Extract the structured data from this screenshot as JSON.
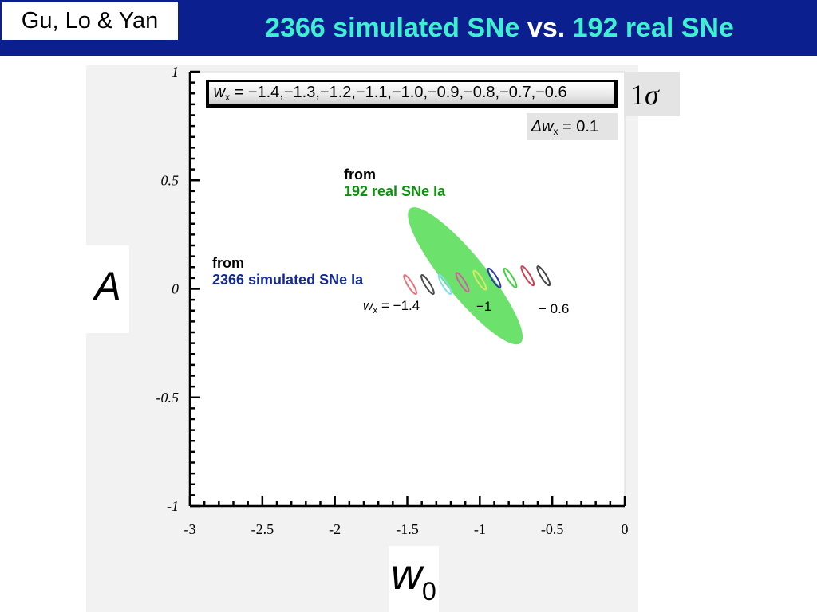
{
  "header": {
    "author": "Gu, Lo & Yan",
    "title_part1": "2366 simulated SNe",
    "title_part2": " vs. ",
    "title_part3": "192 real SNe"
  },
  "labels": {
    "y_axis": "A",
    "x_axis_var": "w",
    "x_axis_sub": "0",
    "sigma_num": "1",
    "sigma_sym": "σ",
    "legend_var": "w",
    "legend_sub": "x",
    "legend_values": " = −1.4,−1.3,−1.2,−1.1,−1.0,−0.9,−0.8,−0.7,−0.6",
    "dw_prefix": "Δw",
    "dw_sub": "x",
    "dw_value": " = 0.1",
    "real_from": "from",
    "real_label": "192 real SNe Ia",
    "sim_from": "from",
    "sim_label": "2366 simulated SNe Ia",
    "wx_var": "w",
    "wx_sub": "x",
    "wx_value": " = −1.4",
    "mark_minus1": "−1",
    "mark_minus06": "− 0.6"
  },
  "chart_data": {
    "type": "scatter",
    "xlabel": "w0",
    "ylabel": "A",
    "xlim": [
      -3,
      0
    ],
    "ylim": [
      -1,
      1
    ],
    "x_ticks": [
      "-3",
      "-2.5",
      "-2",
      "-1.5",
      "-1",
      "-0.5",
      "0"
    ],
    "y_ticks": [
      "1",
      "0.5",
      "0",
      "-0.5",
      "-1"
    ],
    "grid": false,
    "colors": {
      "real": "#5fe05f",
      "ellipse_stroke": [
        "#e8707a",
        "#4a4a4a",
        "#7de0e8",
        "#d060a0",
        "#d8e860",
        "#2a3aa0",
        "#40d040",
        "#d04050",
        "#444444"
      ]
    },
    "real_contour": {
      "name": "192 real SNe Ia",
      "center": [
        -1.08,
        0.13
      ],
      "x_extent": [
        -1.48,
        -0.72
      ],
      "y_extent": [
        -0.25,
        0.37
      ]
    },
    "simulated_contours": [
      {
        "wx": -1.4,
        "center": [
          -1.48,
          0.02
        ]
      },
      {
        "wx": -1.3,
        "center": [
          -1.36,
          0.02
        ]
      },
      {
        "wx": -1.2,
        "center": [
          -1.24,
          0.02
        ]
      },
      {
        "wx": -1.1,
        "center": [
          -1.12,
          0.03
        ]
      },
      {
        "wx": -1.0,
        "center": [
          -1.0,
          0.04
        ]
      },
      {
        "wx": -0.9,
        "center": [
          -0.9,
          0.05
        ]
      },
      {
        "wx": -0.8,
        "center": [
          -0.79,
          0.05
        ]
      },
      {
        "wx": -0.7,
        "center": [
          -0.67,
          0.06
        ]
      },
      {
        "wx": -0.6,
        "center": [
          -0.56,
          0.06
        ]
      }
    ]
  }
}
